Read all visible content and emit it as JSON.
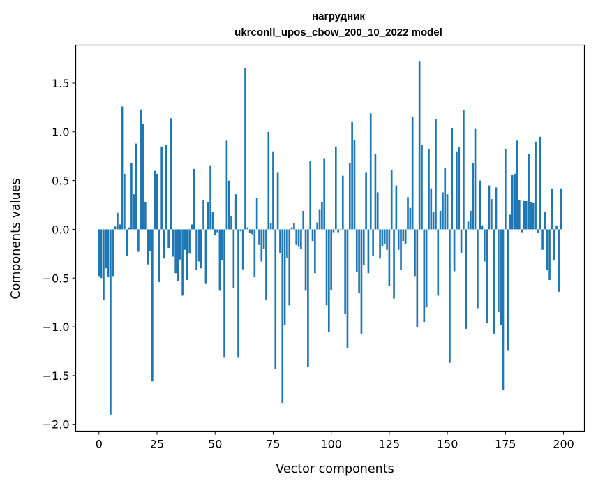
{
  "chart_data": {
    "type": "bar",
    "title_line1": "нагрудник",
    "title_line2": "ukrconll_upos_cbow_200_10_2022 model",
    "xlabel": "Vector components",
    "ylabel": "Components values",
    "xlim": [
      -10,
      209
    ],
    "ylim": [
      -2.07,
      1.89
    ],
    "xticks": [
      0,
      25,
      50,
      75,
      100,
      125,
      150,
      175,
      200
    ],
    "xtick_labels": [
      "0",
      "25",
      "50",
      "75",
      "100",
      "125",
      "150",
      "175",
      "200"
    ],
    "yticks": [
      -2.0,
      -1.5,
      -1.0,
      -0.5,
      0.0,
      0.5,
      1.0,
      1.5
    ],
    "ytick_labels": [
      "−2.0",
      "−1.5",
      "−1.0",
      "−0.5",
      "0.0",
      "0.5",
      "1.0",
      "1.5"
    ],
    "bar_color": "#1f77b4",
    "values": [
      -0.48,
      -0.5,
      -0.72,
      -0.4,
      -0.49,
      -1.9,
      -0.48,
      0.03,
      0.17,
      0.05,
      1.26,
      0.57,
      -0.27,
      0.02,
      0.68,
      0.36,
      0.88,
      -0.23,
      1.23,
      1.08,
      0.28,
      -0.36,
      -0.22,
      -1.56,
      0.6,
      0.57,
      -0.54,
      0.85,
      -0.3,
      0.87,
      -0.19,
      1.14,
      -0.28,
      -0.45,
      -0.53,
      -0.31,
      -0.68,
      -0.21,
      -0.52,
      -0.25,
      0.05,
      0.62,
      -0.42,
      -0.33,
      -0.4,
      0.3,
      -0.56,
      0.28,
      0.65,
      0.18,
      -0.06,
      -0.03,
      -0.63,
      -0.32,
      -1.31,
      0.91,
      0.5,
      0.14,
      -0.6,
      0.36,
      -1.31,
      -0.02,
      -0.41,
      1.65,
      0.02,
      -0.04,
      -0.05,
      -0.49,
      0.32,
      -0.16,
      -0.33,
      -0.2,
      -0.72,
      1.0,
      0.06,
      0.8,
      -1.43,
      0.58,
      -0.24,
      -1.78,
      -0.98,
      -0.29,
      -0.78,
      0.02,
      0.06,
      -0.16,
      -0.18,
      -0.2,
      0.19,
      -0.63,
      -1.41,
      0.7,
      -0.12,
      -0.45,
      0.07,
      0.2,
      0.28,
      0.73,
      -0.78,
      -1.05,
      -0.62,
      -0.03,
      0.85,
      -0.03,
      -0.01,
      0.55,
      -0.87,
      -1.22,
      0.68,
      1.1,
      0.92,
      -0.44,
      -0.65,
      -1.07,
      -0.37,
      0.58,
      -0.45,
      1.19,
      -0.27,
      0.77,
      0.38,
      -0.3,
      -0.17,
      -0.15,
      -0.21,
      -0.58,
      0.61,
      -0.71,
      0.45,
      -0.21,
      -0.42,
      -0.12,
      -0.15,
      0.33,
      0.22,
      1.15,
      -0.48,
      -1.0,
      1.72,
      0.87,
      -0.95,
      -0.8,
      0.82,
      0.42,
      0.18,
      1.13,
      -0.68,
      0.19,
      0.38,
      0.63,
      0.36,
      -1.37,
      1.04,
      -0.43,
      0.8,
      0.84,
      -0.24,
      1.22,
      -1.02,
      0.08,
      0.19,
      0.68,
      1.03,
      -0.81,
      0.5,
      0.04,
      -0.33,
      -0.96,
      0.45,
      0.31,
      -1.07,
      0.43,
      -0.85,
      -0.98,
      -1.65,
      0.82,
      -1.24,
      0.15,
      0.56,
      0.57,
      0.91,
      0.3,
      -0.03,
      0.29,
      0.29,
      0.77,
      0.28,
      0.27,
      0.9,
      -0.04,
      0.95,
      -0.21,
      0.18,
      -0.42,
      -0.52,
      0.42,
      -0.32,
      0.04,
      -0.64,
      0.42
    ]
  }
}
